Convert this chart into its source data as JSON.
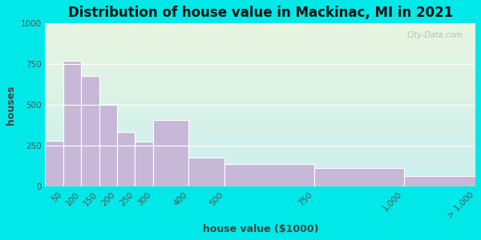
{
  "title": "Distribution of house value in Mackinac, MI in 2021",
  "xlabel": "house value ($1000)",
  "ylabel": "houses",
  "bin_edges": [
    0,
    50,
    100,
    150,
    200,
    250,
    300,
    400,
    500,
    750,
    1000,
    1200
  ],
  "bar_values": [
    280,
    770,
    680,
    505,
    335,
    275,
    410,
    180,
    140,
    115,
    65
  ],
  "tick_positions": [
    50,
    100,
    150,
    200,
    250,
    300,
    400,
    500,
    750,
    1000,
    1200
  ],
  "tick_labels": [
    "50",
    "100",
    "150",
    "200",
    "250",
    "300",
    "400",
    "500",
    "750",
    "1,000",
    "> 1,000"
  ],
  "bar_color": "#c8b8d8",
  "bar_edge_color": "#ffffff",
  "ylim": [
    0,
    1000
  ],
  "yticks": [
    0,
    250,
    500,
    750,
    1000
  ],
  "bg_outer": "#00e8e8",
  "bg_plot_top": "#e8f5e0",
  "bg_plot_bottom": "#ccf0ee",
  "title_fontsize": 12,
  "axis_label_fontsize": 9,
  "tick_fontsize": 7.5,
  "watermark": "City-Data.com"
}
